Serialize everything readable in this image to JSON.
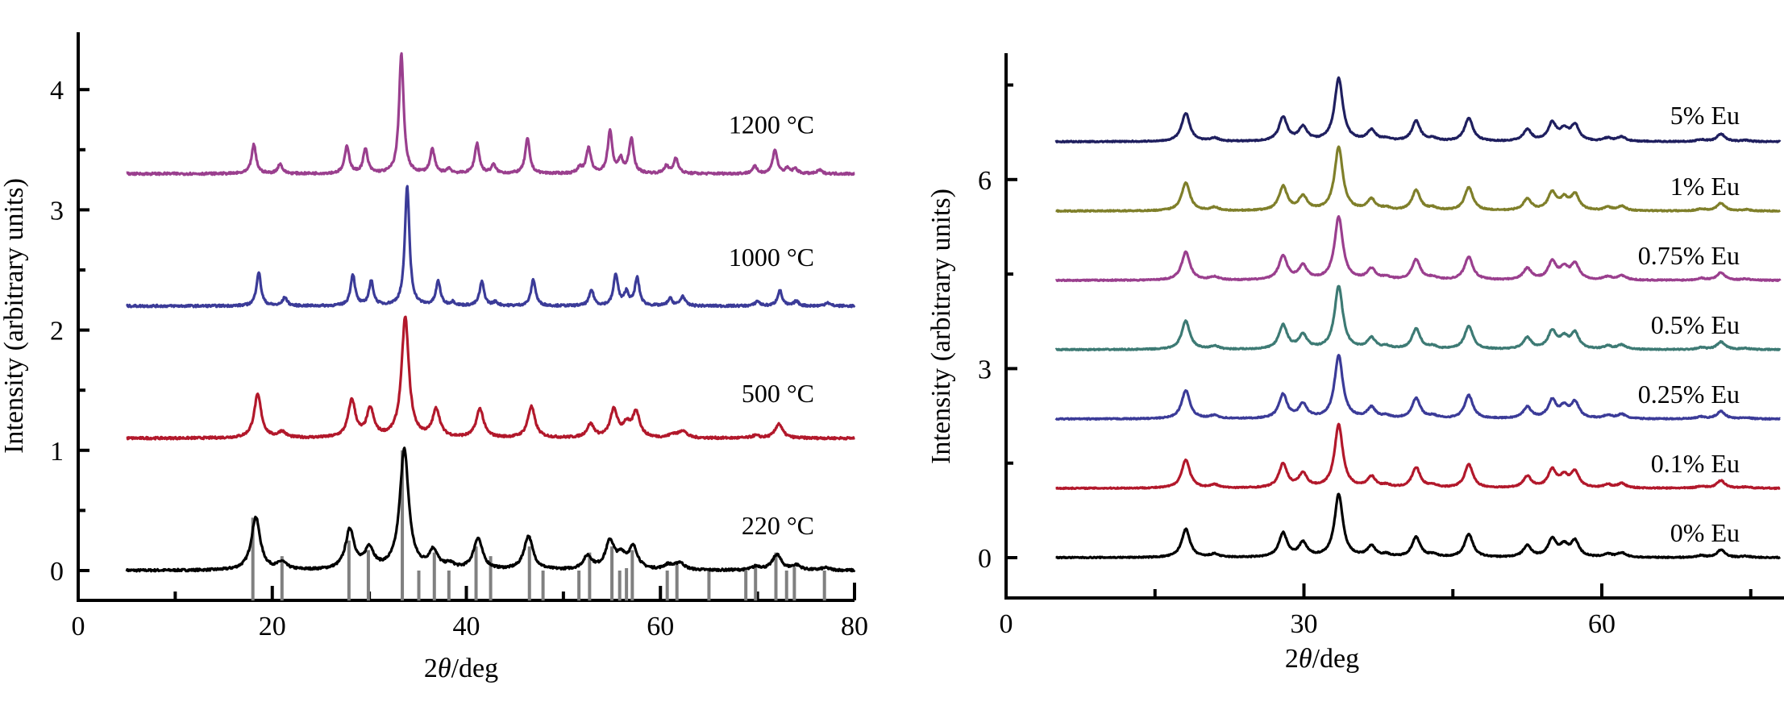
{
  "chart_data": [
    {
      "type": "line",
      "panel": "left",
      "title": "",
      "xlabel_prefix": "2",
      "xlabel_theta": "θ",
      "xlabel_suffix": "/deg",
      "ylabel": "Intensity (arbitrary units)",
      "xlim": [
        0,
        80
      ],
      "ylim": [
        -0.25,
        4.5
      ],
      "x_ticks": [
        0,
        20,
        40,
        60,
        80
      ],
      "x_minor_ticks": [
        10,
        30,
        50,
        70
      ],
      "y_ticks": [
        0,
        1,
        2,
        3,
        4
      ],
      "y_minor_ticks": [
        0.5,
        1.5,
        2.5,
        3.5
      ],
      "x_range_data": [
        5,
        80
      ],
      "grid": false,
      "series": [
        {
          "name": "220°C",
          "label": "220 °C",
          "color": "#000000",
          "offset": 0,
          "peak_width": 0.55,
          "peaks": [
            [
              18.3,
              0.44
            ],
            [
              21.0,
              0.06
            ],
            [
              28.0,
              0.33
            ],
            [
              30.0,
              0.17
            ],
            [
              33.6,
              1.0
            ],
            [
              36.6,
              0.15
            ],
            [
              38.3,
              0.04
            ],
            [
              41.2,
              0.26
            ],
            [
              46.4,
              0.28
            ],
            [
              52.5,
              0.11
            ],
            [
              54.8,
              0.23
            ],
            [
              56.0,
              0.1
            ],
            [
              57.2,
              0.18
            ],
            [
              60.8,
              0.04
            ],
            [
              62.0,
              0.06
            ],
            [
              69.9,
              0.03
            ],
            [
              72.0,
              0.13
            ],
            [
              74.0,
              0.04
            ],
            [
              77.0,
              0.02
            ]
          ]
        },
        {
          "name": "500°C",
          "label": "500 °C",
          "color": "#b2182b",
          "offset": 1.1,
          "peak_width": 0.45,
          "peaks": [
            [
              18.5,
              0.36
            ],
            [
              21.0,
              0.05
            ],
            [
              28.2,
              0.31
            ],
            [
              30.1,
              0.23
            ],
            [
              33.7,
              1.0
            ],
            [
              36.9,
              0.23
            ],
            [
              41.4,
              0.24
            ],
            [
              46.7,
              0.26
            ],
            [
              52.8,
              0.11
            ],
            [
              55.2,
              0.23
            ],
            [
              56.5,
              0.1
            ],
            [
              57.5,
              0.21
            ],
            [
              61.3,
              0.03
            ],
            [
              62.3,
              0.06
            ],
            [
              69.8,
              0.02
            ],
            [
              72.2,
              0.12
            ]
          ]
        },
        {
          "name": "1000°C",
          "label": "1000 °C",
          "color": "#3b3b98",
          "offset": 2.2,
          "peak_width": 0.28,
          "peaks": [
            [
              18.6,
              0.28
            ],
            [
              21.3,
              0.07
            ],
            [
              28.3,
              0.26
            ],
            [
              30.2,
              0.2
            ],
            [
              33.9,
              1.0
            ],
            [
              37.1,
              0.2
            ],
            [
              38.6,
              0.03
            ],
            [
              41.6,
              0.2
            ],
            [
              43.0,
              0.03
            ],
            [
              46.9,
              0.22
            ],
            [
              52.9,
              0.13
            ],
            [
              55.4,
              0.26
            ],
            [
              56.5,
              0.11
            ],
            [
              57.6,
              0.23
            ],
            [
              61.0,
              0.06
            ],
            [
              62.3,
              0.08
            ],
            [
              70.0,
              0.04
            ],
            [
              72.3,
              0.13
            ],
            [
              74.0,
              0.04
            ],
            [
              77.2,
              0.03
            ]
          ]
        },
        {
          "name": "1200°C",
          "label": "1200 °C",
          "color": "#9a3f8e",
          "offset": 3.3,
          "peak_width": 0.28,
          "peaks": [
            [
              18.1,
              0.24
            ],
            [
              20.8,
              0.08
            ],
            [
              27.7,
              0.23
            ],
            [
              29.6,
              0.2
            ],
            [
              33.3,
              1.0
            ],
            [
              36.5,
              0.2
            ],
            [
              38.2,
              0.04
            ],
            [
              41.1,
              0.25
            ],
            [
              42.8,
              0.07
            ],
            [
              46.3,
              0.29
            ],
            [
              51.7,
              0.05
            ],
            [
              52.6,
              0.21
            ],
            [
              54.8,
              0.35
            ],
            [
              55.9,
              0.11
            ],
            [
              57.0,
              0.29
            ],
            [
              60.6,
              0.06
            ],
            [
              61.6,
              0.13
            ],
            [
              69.7,
              0.06
            ],
            [
              71.8,
              0.2
            ],
            [
              73.1,
              0.04
            ],
            [
              73.9,
              0.04
            ],
            [
              76.4,
              0.03
            ]
          ]
        }
      ],
      "reference_lines": {
        "color": "#808080",
        "from_y": -0.25,
        "lines": [
          [
            18.0,
            0.44
          ],
          [
            21.0,
            0.12
          ],
          [
            27.9,
            0.25
          ],
          [
            29.9,
            0.17
          ],
          [
            33.4,
            1.0
          ],
          [
            35.1,
            0.0
          ],
          [
            36.7,
            0.15
          ],
          [
            38.2,
            0.0
          ],
          [
            41.0,
            0.2
          ],
          [
            42.5,
            0.12
          ],
          [
            46.5,
            0.2
          ],
          [
            47.9,
            0.0
          ],
          [
            51.6,
            0.0
          ],
          [
            52.7,
            0.15
          ],
          [
            55.0,
            0.2
          ],
          [
            55.8,
            0.0
          ],
          [
            56.5,
            0.02
          ],
          [
            57.1,
            0.17
          ],
          [
            60.7,
            0.0
          ],
          [
            61.7,
            0.05
          ],
          [
            65.0,
            0.0
          ],
          [
            68.8,
            0.0
          ],
          [
            69.8,
            0.03
          ],
          [
            71.9,
            0.15
          ],
          [
            73.0,
            0.0
          ],
          [
            73.8,
            0.03
          ],
          [
            76.9,
            0.0
          ]
        ]
      }
    },
    {
      "type": "line",
      "panel": "right",
      "title": "",
      "xlabel_prefix": "2",
      "xlabel_theta": "θ",
      "xlabel_suffix": "/deg",
      "ylabel": "Intensity (arbitrary units)",
      "xlim": [
        0,
        78
      ],
      "ylim": [
        -0.65,
        8.0
      ],
      "x_ticks": [
        0,
        30,
        60
      ],
      "x_minor_ticks": [
        15,
        45,
        75
      ],
      "y_ticks": [
        0,
        3,
        6
      ],
      "y_minor_ticks": [
        1.5,
        4.5,
        7.5
      ],
      "x_range_data": [
        5,
        78
      ],
      "grid": false,
      "series": [
        {
          "name": "0% Eu",
          "label": "0% Eu",
          "color": "#000000",
          "offset": 0.0
        },
        {
          "name": "0.1% Eu",
          "label": "0.1% Eu",
          "color": "#b2182b",
          "offset": 1.1
        },
        {
          "name": "0.25% Eu",
          "label": "0.25% Eu",
          "color": "#3b3b98",
          "offset": 2.2
        },
        {
          "name": "0.5% Eu",
          "label": "0.5% Eu",
          "color": "#3d7a74",
          "offset": 3.3
        },
        {
          "name": "0.75% Eu",
          "label": "0.75% Eu",
          "color": "#9a3f8e",
          "offset": 4.4
        },
        {
          "name": "1% Eu",
          "label": "1% Eu",
          "color": "#7f7f2a",
          "offset": 5.5
        },
        {
          "name": "5% Eu",
          "label": "5% Eu",
          "color": "#1f1f5f",
          "offset": 6.6
        }
      ],
      "shared_peak_width": 0.5,
      "shared_peaks": [
        [
          18.1,
          0.45
        ],
        [
          21.0,
          0.05
        ],
        [
          27.9,
          0.38
        ],
        [
          29.9,
          0.22
        ],
        [
          33.5,
          1.0
        ],
        [
          36.8,
          0.17
        ],
        [
          38.3,
          0.04
        ],
        [
          41.3,
          0.32
        ],
        [
          43.0,
          0.04
        ],
        [
          46.6,
          0.37
        ],
        [
          52.5,
          0.18
        ],
        [
          55.0,
          0.28
        ],
        [
          56.2,
          0.17
        ],
        [
          57.3,
          0.25
        ],
        [
          60.6,
          0.05
        ],
        [
          62.0,
          0.07
        ],
        [
          70.0,
          0.03
        ],
        [
          72.0,
          0.12
        ],
        [
          74.5,
          0.02
        ]
      ]
    }
  ]
}
